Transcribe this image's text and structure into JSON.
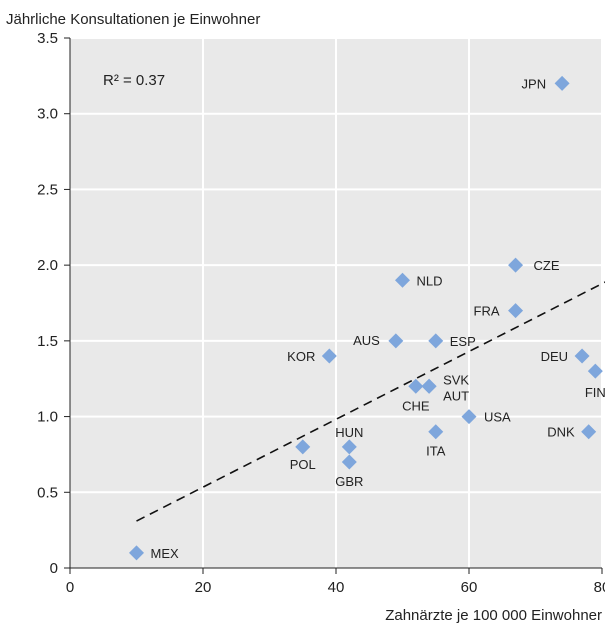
{
  "chart_data": {
    "type": "scatter",
    "title": "",
    "xlabel": "Zahnärzte je 100 000 Einwohner",
    "ylabel": "Jährliche Konsultationen je Einwohner",
    "xlim": [
      0,
      80
    ],
    "ylim": [
      0,
      3.5
    ],
    "xticks": [
      "0",
      "20",
      "40",
      "60",
      "80"
    ],
    "yticks": [
      "0",
      "0.5",
      "1.0",
      "1.5",
      "2.0",
      "2.5",
      "3.0",
      "3.5"
    ],
    "annotation": "R² = 0.37",
    "grid": true,
    "marker_color": "#7ea6dc",
    "points": [
      {
        "label": "MEX",
        "x": 10,
        "y": 0.1
      },
      {
        "label": "POL",
        "x": 35,
        "y": 0.8
      },
      {
        "label": "KOR",
        "x": 39,
        "y": 1.4
      },
      {
        "label": "HUN",
        "x": 42,
        "y": 0.8
      },
      {
        "label": "GBR",
        "x": 42,
        "y": 0.7
      },
      {
        "label": "AUS",
        "x": 49,
        "y": 1.5
      },
      {
        "label": "NLD",
        "x": 50,
        "y": 1.9
      },
      {
        "label": "CHE",
        "x": 52,
        "y": 1.2
      },
      {
        "label": "SVK",
        "x": 54,
        "y": 1.2
      },
      {
        "label": "AUT",
        "x": 54,
        "y": 1.2
      },
      {
        "label": "ESP",
        "x": 55,
        "y": 1.5
      },
      {
        "label": "ITA",
        "x": 55,
        "y": 0.9
      },
      {
        "label": "USA",
        "x": 60,
        "y": 1.0
      },
      {
        "label": "CZE",
        "x": 67,
        "y": 2.0
      },
      {
        "label": "FRA",
        "x": 67,
        "y": 1.7
      },
      {
        "label": "JPN",
        "x": 74,
        "y": 3.2
      },
      {
        "label": "DEU",
        "x": 77,
        "y": 1.4
      },
      {
        "label": "DNK",
        "x": 78,
        "y": 0.9
      },
      {
        "label": "FIN",
        "x": 79,
        "y": 1.3
      }
    ],
    "trendline": {
      "x": [
        10,
        81
      ],
      "y": [
        0.31,
        1.9
      ]
    }
  }
}
